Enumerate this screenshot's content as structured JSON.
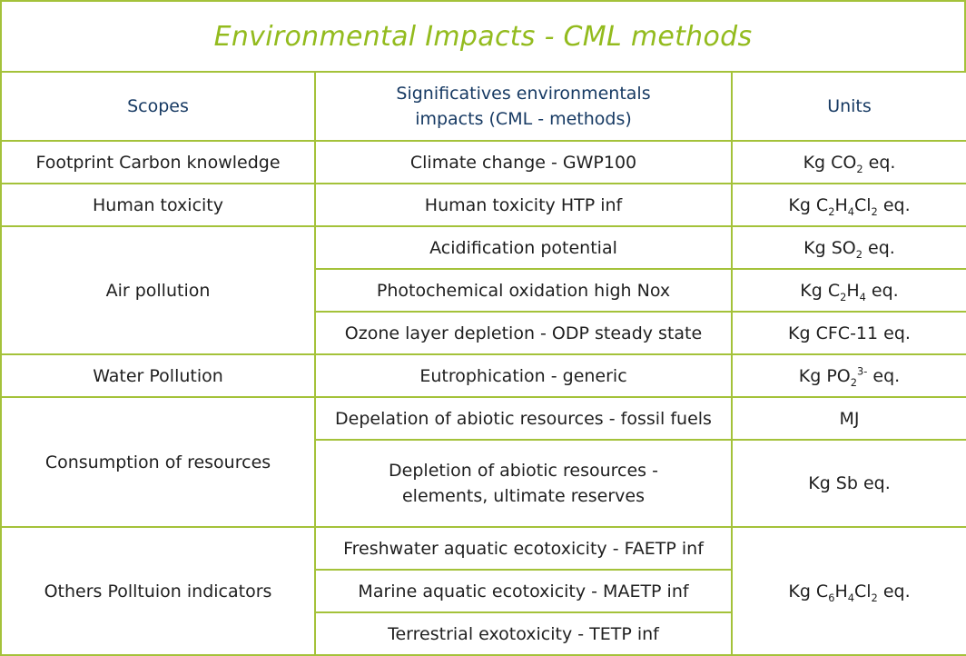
{
  "title": "Environmental Impacts - CML methods",
  "headers": {
    "scopes": "Scopes",
    "impacts_line1": "Significatives environmentals",
    "impacts_line2": "impacts (CML - methods)",
    "units": "Units"
  },
  "rows": {
    "footprint": {
      "scope": "Footprint Carbon knowledge",
      "impact": "Climate change - GWP100",
      "unit_pre": "Kg CO",
      "unit_sub": "2",
      "unit_post": " eq."
    },
    "human": {
      "scope": "Human toxicity",
      "impact": "Human toxicity HTP inf",
      "unit_pre": "Kg C",
      "unit_sub1": "2",
      "unit_mid1": "H",
      "unit_sub2": "4",
      "unit_mid2": "Cl",
      "unit_sub3": "2",
      "unit_post": " eq."
    },
    "air": {
      "scope": "Air pollution",
      "acid_impact": "Acidification potential",
      "acid_unit_pre": "Kg SO",
      "acid_unit_sub": "2",
      "acid_unit_post": " eq.",
      "photo_impact": "Photochemical oxidation high Nox",
      "photo_unit_pre": "Kg C",
      "photo_unit_sub1": "2",
      "photo_unit_mid": "H",
      "photo_unit_sub2": "4",
      "photo_unit_post": " eq.",
      "ozone_impact": "Ozone layer depletion - ODP steady state",
      "ozone_unit": "Kg CFC-11 eq."
    },
    "water": {
      "scope": "Water Pollution",
      "impact": "Eutrophication - generic",
      "unit_pre": "Kg PO",
      "unit_sub": "2",
      "unit_sup": "3-",
      "unit_post": " eq."
    },
    "resources": {
      "scope": "Consumption of resources",
      "fossil_impact": "Depelation of abiotic resources - fossil fuels",
      "fossil_unit": "MJ",
      "elements_line1": "Depletion of abiotic resources -",
      "elements_line2": "elements, ultimate reserves",
      "elements_unit": "Kg Sb eq."
    },
    "others": {
      "scope": "Others Polltuion indicators",
      "fresh_impact": "Freshwater aquatic ecotoxicity - FAETP inf",
      "marine_impact": "Marine aquatic ecotoxicity - MAETP inf",
      "terr_impact": "Terrestrial exotoxicity - TETP inf",
      "unit_pre": "Kg C",
      "unit_sub1": "6",
      "unit_mid1": "H",
      "unit_sub2": "4",
      "unit_mid2": "Cl",
      "unit_sub3": "2",
      "unit_post": " eq."
    }
  },
  "colors": {
    "accent": "#93bb1e",
    "border": "#a4c23a",
    "header_text": "#173a63"
  }
}
